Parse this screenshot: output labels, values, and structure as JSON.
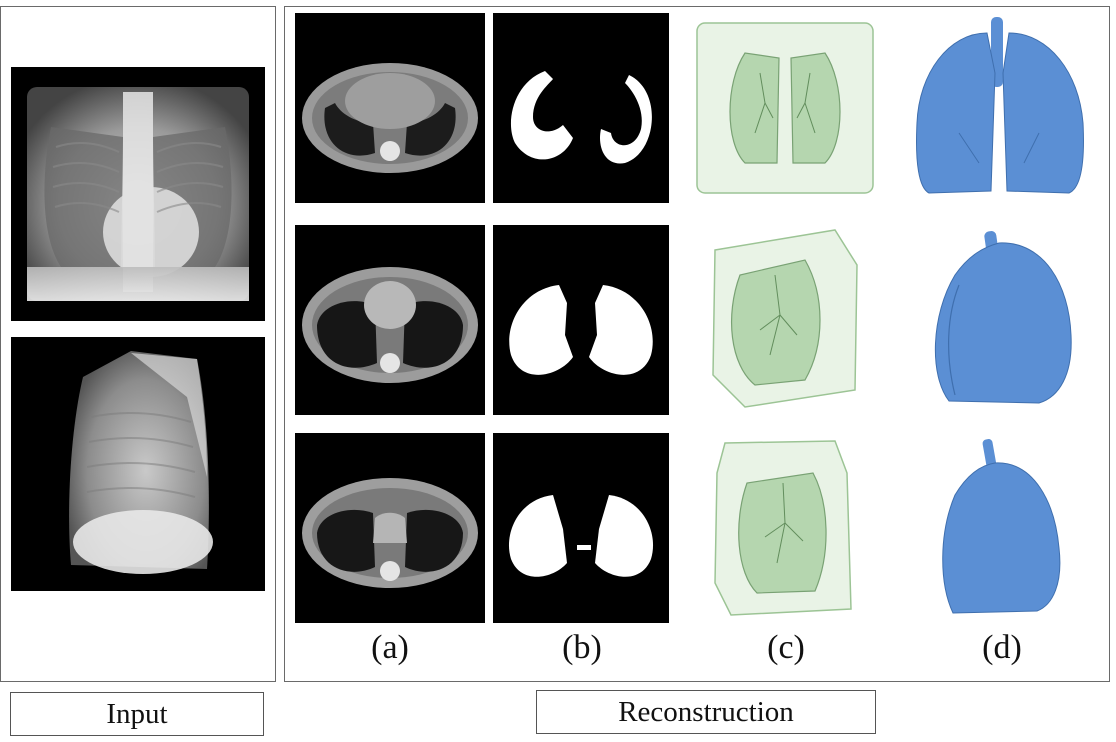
{
  "labels": {
    "input": "Input",
    "reconstruction": "Reconstruction"
  },
  "columns": [
    {
      "label": "(a)"
    },
    {
      "label": "(b)"
    },
    {
      "label": "(c)"
    },
    {
      "label": "(d)"
    }
  ],
  "colors": {
    "ct_background": "#000000",
    "mask_foreground": "#ffffff",
    "volume_green": "#6fa86a",
    "mesh_blue": "#5b8fd4"
  },
  "icons": {
    "xray_frontal": "frontal-chest-xray",
    "xray_lateral": "lateral-chest-xray",
    "ct_slice": "axial-ct-slice",
    "lung_mask": "binary-lung-mask",
    "volume_render": "translucent-volume",
    "surface_mesh": "lung-surface-mesh"
  }
}
